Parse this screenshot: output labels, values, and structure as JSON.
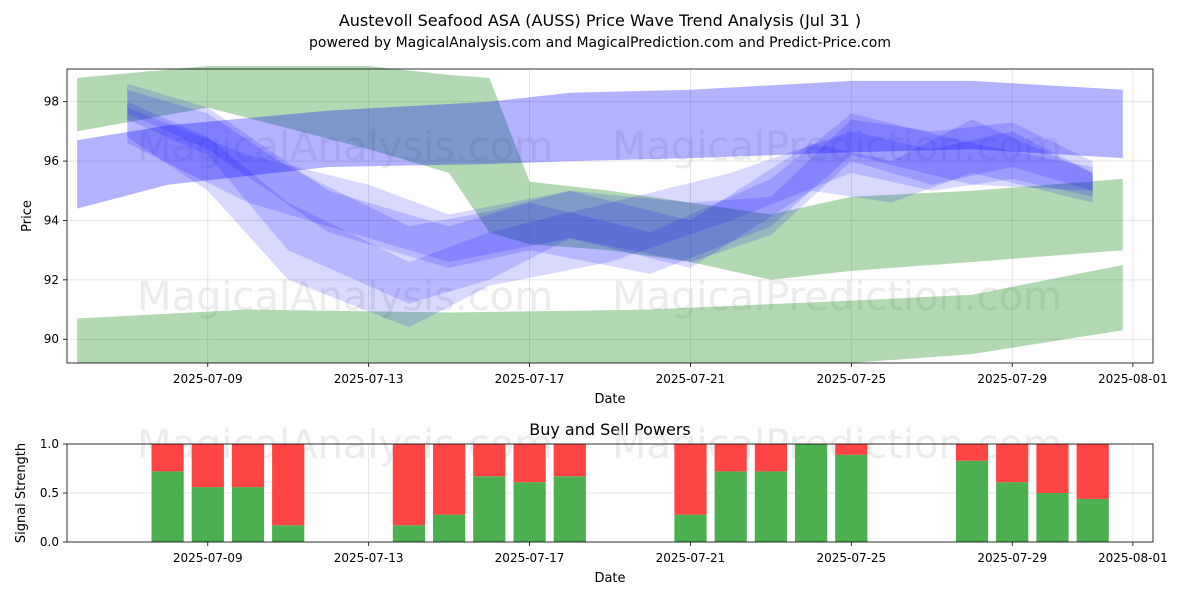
{
  "header": {
    "title": "Austevoll Seafood ASA (AUSS) Price Wave Trend Analysis (Jul 31 )",
    "subtitle": "powered by MagicalAnalysis.com and MagicalPrediction.com and Predict-Price.com"
  },
  "watermarks": [
    "MagicalAnalysis.com",
    "MagicalPrediction.com"
  ],
  "colors": {
    "green": "#008000",
    "blue": "#0000ff",
    "buy": "#4caf50",
    "sell": "#ff4444"
  },
  "chart_data": [
    {
      "type": "area",
      "title": "",
      "xlabel": "Date",
      "ylabel": "Price",
      "xlim": [
        "2025-07-05T12:00",
        "2025-08-01T12:00"
      ],
      "ylim": [
        89.2,
        99.1
      ],
      "x_ticks": [
        "2025-07-09",
        "2025-07-13",
        "2025-07-17",
        "2025-07-21",
        "2025-07-25",
        "2025-07-29",
        "2025-08-01"
      ],
      "y_ticks": [
        90,
        92,
        94,
        96,
        98
      ],
      "grid": true,
      "series": [
        {
          "color": "green",
          "opacity": 0.3,
          "x": [
            "2025-07-05T18:00",
            "2025-07-09",
            "2025-07-13",
            "2025-07-15",
            "2025-07-16",
            "2025-07-17",
            "2025-07-19",
            "2025-07-21",
            "2025-07-23",
            "2025-07-25",
            "2025-07-28",
            "2025-07-31T18:00"
          ],
          "upper": [
            98.8,
            99.2,
            99.2,
            98.9,
            98.8,
            95.3,
            95.0,
            94.6,
            94.2,
            94.8,
            95.0,
            95.4
          ],
          "lower": [
            97.0,
            97.8,
            96.4,
            95.6,
            93.6,
            93.2,
            93.0,
            92.6,
            92.0,
            92.3,
            92.6,
            93.0
          ]
        },
        {
          "color": "green",
          "opacity": 0.3,
          "x": [
            "2025-07-05T18:00",
            "2025-07-10",
            "2025-07-15",
            "2025-07-20",
            "2025-07-25",
            "2025-07-28",
            "2025-07-31T18:00"
          ],
          "upper": [
            90.7,
            91.0,
            90.9,
            91.0,
            91.3,
            91.5,
            92.5
          ],
          "lower": [
            89.2,
            89.2,
            89.2,
            89.2,
            89.2,
            89.5,
            90.3
          ]
        },
        {
          "color": "blue",
          "opacity": 0.3,
          "x": [
            "2025-07-05T18:00",
            "2025-07-08",
            "2025-07-12",
            "2025-07-16",
            "2025-07-18",
            "2025-07-21",
            "2025-07-25",
            "2025-07-28",
            "2025-07-31T18:00"
          ],
          "upper": [
            96.7,
            97.2,
            97.7,
            98.0,
            98.3,
            98.4,
            98.7,
            98.7,
            98.4
          ],
          "lower": [
            94.4,
            95.2,
            95.8,
            95.9,
            96.0,
            96.1,
            96.3,
            96.4,
            96.1
          ]
        },
        {
          "color": "blue",
          "opacity": 0.15,
          "x": [
            "2025-07-07",
            "2025-07-09",
            "2025-07-11",
            "2025-07-14",
            "2025-07-16",
            "2025-07-18",
            "2025-07-21",
            "2025-07-23",
            "2025-07-25",
            "2025-07-27",
            "2025-07-29",
            "2025-07-31"
          ],
          "upper": [
            98.4,
            97.6,
            95.8,
            93.8,
            94.3,
            95.0,
            94.6,
            94.8,
            97.4,
            97.0,
            97.3,
            96.0
          ],
          "lower": [
            97.4,
            96.2,
            93.0,
            91.2,
            92.0,
            93.4,
            92.6,
            93.5,
            96.0,
            95.2,
            95.8,
            95.0
          ]
        },
        {
          "color": "blue",
          "opacity": 0.15,
          "x": [
            "2025-07-07",
            "2025-07-09",
            "2025-07-11",
            "2025-07-14",
            "2025-07-16",
            "2025-07-19",
            "2025-07-22",
            "2025-07-25",
            "2025-07-27",
            "2025-07-29",
            "2025-07-31"
          ],
          "upper": [
            98.0,
            96.8,
            94.6,
            92.6,
            93.6,
            94.6,
            95.6,
            97.0,
            96.4,
            97.0,
            95.6
          ],
          "lower": [
            96.8,
            95.0,
            92.0,
            90.4,
            91.8,
            92.6,
            94.0,
            95.6,
            95.0,
            95.4,
            94.8
          ]
        },
        {
          "color": "blue",
          "opacity": 0.15,
          "x": [
            "2025-07-07",
            "2025-07-10",
            "2025-07-13",
            "2025-07-15",
            "2025-07-18",
            "2025-07-21",
            "2025-07-24",
            "2025-07-26",
            "2025-07-28",
            "2025-07-31"
          ],
          "upper": [
            97.8,
            96.2,
            95.2,
            94.2,
            95.0,
            94.0,
            96.6,
            96.0,
            97.4,
            95.6
          ],
          "lower": [
            96.6,
            94.6,
            93.4,
            92.6,
            93.4,
            92.4,
            95.0,
            94.6,
            95.6,
            94.6
          ]
        },
        {
          "color": "blue",
          "opacity": 0.15,
          "x": [
            "2025-07-07",
            "2025-07-09",
            "2025-07-12",
            "2025-07-15",
            "2025-07-17",
            "2025-07-20",
            "2025-07-23",
            "2025-07-25",
            "2025-07-28",
            "2025-07-31"
          ],
          "upper": [
            98.6,
            97.8,
            95.0,
            93.8,
            94.6,
            93.6,
            95.4,
            97.6,
            96.6,
            95.8
          ],
          "lower": [
            97.6,
            96.4,
            93.6,
            92.4,
            93.0,
            92.2,
            93.8,
            96.2,
            95.2,
            95.0
          ]
        }
      ]
    },
    {
      "type": "bar",
      "title": "Buy and Sell Powers",
      "xlabel": "Date",
      "ylabel": "Signal Strength",
      "ylim": [
        0,
        1
      ],
      "y_ticks": [
        "0.0",
        "0.5",
        "1.0"
      ],
      "x_ticks": [
        "2025-07-09",
        "2025-07-13",
        "2025-07-17",
        "2025-07-21",
        "2025-07-25",
        "2025-07-29",
        "2025-08-01"
      ],
      "grid": true,
      "categories": [
        "2025-07-08",
        "2025-07-09",
        "2025-07-10",
        "2025-07-11",
        "2025-07-14",
        "2025-07-15",
        "2025-07-16",
        "2025-07-17",
        "2025-07-18",
        "2025-07-21",
        "2025-07-22",
        "2025-07-23",
        "2025-07-24",
        "2025-07-25",
        "2025-07-28",
        "2025-07-29",
        "2025-07-30",
        "2025-07-31"
      ],
      "series": [
        {
          "color": "buy",
          "values": [
            0.72,
            0.56,
            0.56,
            0.17,
            0.17,
            0.28,
            0.67,
            0.61,
            0.67,
            0.28,
            0.72,
            0.72,
            1.0,
            0.89,
            0.83,
            0.61,
            0.5,
            0.44
          ]
        },
        {
          "color": "sell",
          "values": [
            0.28,
            0.44,
            0.44,
            0.83,
            0.83,
            0.72,
            0.33,
            0.39,
            0.33,
            0.72,
            0.28,
            0.28,
            0.0,
            0.11,
            0.17,
            0.39,
            0.5,
            0.56
          ]
        }
      ]
    }
  ]
}
